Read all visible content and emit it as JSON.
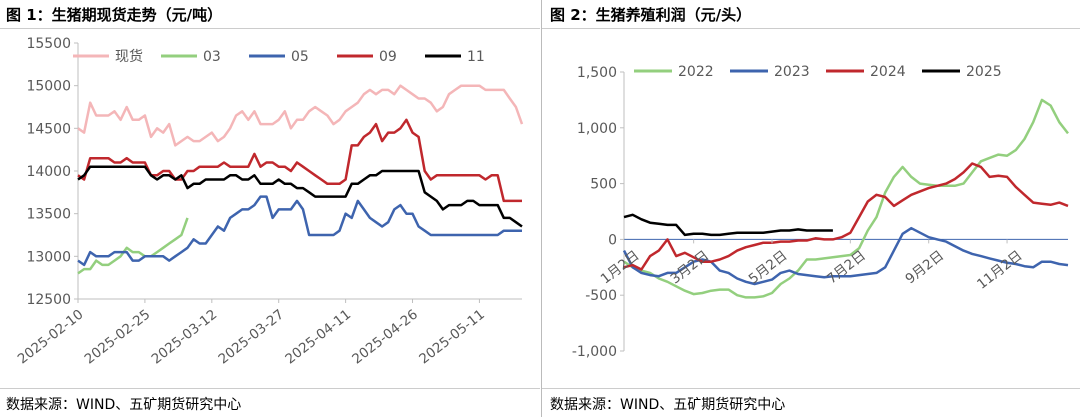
{
  "chart_data": [
    {
      "type": "line",
      "title": "图 1：生猪期现货走势（元/吨）",
      "source": "数据来源：WIND、五矿期货研究中心",
      "ylim": [
        12500,
        15500
      ],
      "yticks": [
        "15500",
        "15000",
        "14500",
        "14000",
        "13500",
        "13000",
        "12500"
      ],
      "ytick_values": [
        15500,
        15000,
        14500,
        14000,
        13500,
        13000,
        12500
      ],
      "xticks": [
        "2025-02-10",
        "2025-02-25",
        "2025-03-12",
        "2025-03-27",
        "2025-04-11",
        "2025-04-26",
        "2025-05-11"
      ],
      "xtick_index": [
        0,
        11,
        22,
        33,
        44,
        55,
        66
      ],
      "n_points": 74,
      "series": [
        {
          "name": "现货",
          "color": "#f4b6b8",
          "start": 0,
          "values": [
            14500,
            14450,
            14800,
            14650,
            14650,
            14650,
            14700,
            14600,
            14750,
            14600,
            14600,
            14650,
            14400,
            14500,
            14450,
            14550,
            14300,
            14350,
            14400,
            14350,
            14350,
            14400,
            14450,
            14350,
            14400,
            14500,
            14650,
            14700,
            14600,
            14700,
            14550,
            14550,
            14550,
            14600,
            14700,
            14500,
            14600,
            14600,
            14700,
            14750,
            14700,
            14650,
            14550,
            14600,
            14700,
            14750,
            14800,
            14900,
            14950,
            14900,
            14950,
            14950,
            14900,
            15000,
            14950,
            14900,
            14850,
            14850,
            14800,
            14700,
            14750,
            14900,
            14950,
            15000,
            15000,
            15000,
            15000,
            14950,
            14950,
            14950,
            14950,
            14850,
            14750,
            14550
          ]
        },
        {
          "name": "03",
          "color": "#93cf7e",
          "start": 0,
          "values": [
            12800,
            12850,
            12850,
            12950,
            12900,
            12900,
            12950,
            13000,
            13100,
            13050,
            13050,
            13000,
            13000,
            13050,
            13100,
            13150,
            13200,
            13250,
            13450
          ]
        },
        {
          "name": "05",
          "color": "#3e64ae",
          "start": 0,
          "values": [
            12950,
            12900,
            13050,
            13000,
            13000,
            13000,
            13050,
            13050,
            13050,
            12950,
            12950,
            13000,
            13000,
            13000,
            13000,
            12950,
            13000,
            13050,
            13100,
            13200,
            13150,
            13150,
            13250,
            13350,
            13300,
            13450,
            13500,
            13550,
            13550,
            13600,
            13700,
            13700,
            13450,
            13550,
            13550,
            13550,
            13650,
            13550,
            13250,
            13250,
            13250,
            13250,
            13250,
            13300,
            13500,
            13450,
            13650,
            13550,
            13450,
            13400,
            13350,
            13400,
            13550,
            13600,
            13500,
            13500,
            13350,
            13300,
            13250,
            13250,
            13250,
            13250,
            13250,
            13250,
            13250,
            13250,
            13250,
            13250,
            13250,
            13250,
            13300,
            13300,
            13300,
            13300
          ]
        },
        {
          "name": "09",
          "color": "#c0282d",
          "start": 0,
          "values": [
            13950,
            13900,
            14150,
            14150,
            14150,
            14150,
            14100,
            14100,
            14150,
            14100,
            14100,
            14100,
            13950,
            13950,
            14000,
            14000,
            13900,
            13900,
            14000,
            14000,
            14050,
            14050,
            14050,
            14050,
            14100,
            14050,
            14050,
            14050,
            14050,
            14200,
            14050,
            14100,
            14100,
            14050,
            14050,
            14000,
            14100,
            14050,
            14000,
            13950,
            13900,
            13850,
            13850,
            13850,
            13900,
            14300,
            14300,
            14400,
            14450,
            14550,
            14350,
            14450,
            14450,
            14500,
            14600,
            14450,
            14400,
            14000,
            13900,
            13950,
            13950,
            13950,
            13950,
            13950,
            13950,
            13950,
            13950,
            13900,
            13950,
            13950,
            13650,
            13650,
            13650,
            13650
          ]
        },
        {
          "name": "11",
          "color": "#000000",
          "start": 0,
          "values": [
            13900,
            13950,
            14050,
            14050,
            14050,
            14050,
            14050,
            14050,
            14050,
            14050,
            14050,
            14050,
            13950,
            13900,
            13950,
            13950,
            13900,
            13950,
            13800,
            13850,
            13850,
            13900,
            13900,
            13900,
            13900,
            13950,
            13950,
            13900,
            13900,
            13950,
            13850,
            13850,
            13850,
            13900,
            13850,
            13850,
            13800,
            13800,
            13750,
            13700,
            13700,
            13700,
            13700,
            13700,
            13700,
            13850,
            13850,
            13900,
            13950,
            13950,
            14000,
            14000,
            14000,
            14000,
            14000,
            14000,
            14000,
            13750,
            13700,
            13650,
            13550,
            13600,
            13600,
            13600,
            13650,
            13650,
            13600,
            13600,
            13600,
            13600,
            13450,
            13450,
            13400,
            13350
          ]
        }
      ]
    },
    {
      "type": "line",
      "title": "图 2：生猪养殖利润（元/头）",
      "source": "数据来源：WIND、五矿期货研究中心",
      "ylim": [
        -1000,
        1500
      ],
      "yticks": [
        "1,500",
        "1,000",
        "500",
        "0",
        "-500",
        "-1,000"
      ],
      "ytick_values": [
        1500,
        1000,
        500,
        0,
        -500,
        -1000
      ],
      "xticks": [
        "1月2日",
        "3月2日",
        "5月2日",
        "7月2日",
        "9月2日",
        "11月2日"
      ],
      "xtick_index": [
        0,
        8,
        17,
        26,
        35,
        44
      ],
      "n_points": 52,
      "series": [
        {
          "name": "2022",
          "color": "#93cf7e",
          "start": 0,
          "values": [
            -200,
            -250,
            -280,
            -300,
            -350,
            -380,
            -420,
            -460,
            -490,
            -480,
            -460,
            -450,
            -450,
            -500,
            -520,
            -520,
            -510,
            -480,
            -400,
            -350,
            -280,
            -180,
            -180,
            -170,
            -160,
            -150,
            -140,
            -80,
            80,
            200,
            420,
            560,
            650,
            560,
            500,
            490,
            480,
            480,
            480,
            500,
            600,
            700,
            730,
            760,
            750,
            800,
            900,
            1050,
            1250,
            1200,
            1050,
            950
          ]
        },
        {
          "name": "2023",
          "color": "#3e64ae",
          "start": 0,
          "values": [
            -100,
            -250,
            -300,
            -320,
            -330,
            -300,
            -300,
            -250,
            -200,
            -180,
            -200,
            -280,
            -300,
            -350,
            -380,
            -400,
            -380,
            -360,
            -300,
            -280,
            -310,
            -320,
            -330,
            -340,
            -330,
            -330,
            -330,
            -320,
            -310,
            -300,
            -250,
            -100,
            50,
            100,
            60,
            20,
            0,
            -20,
            -60,
            -100,
            -130,
            -150,
            -170,
            -190,
            -210,
            -220,
            -240,
            -250,
            -200,
            -200,
            -220,
            -230
          ]
        },
        {
          "name": "2024",
          "color": "#c0282d",
          "start": 0,
          "values": [
            -250,
            -230,
            -270,
            -150,
            -100,
            0,
            -150,
            -120,
            -160,
            -200,
            -200,
            -180,
            -150,
            -100,
            -70,
            -50,
            -30,
            -30,
            -20,
            -20,
            -10,
            -10,
            10,
            0,
            0,
            20,
            60,
            200,
            340,
            400,
            380,
            300,
            350,
            400,
            430,
            460,
            480,
            500,
            540,
            600,
            680,
            650,
            560,
            570,
            560,
            470,
            400,
            330,
            320,
            310,
            330,
            300
          ]
        },
        {
          "name": "2025",
          "color": "#000000",
          "start": 0,
          "values": [
            200,
            220,
            180,
            150,
            140,
            130,
            130,
            40,
            50,
            50,
            40,
            40,
            50,
            60,
            60,
            60,
            60,
            70,
            80,
            80,
            90,
            80,
            80,
            80,
            80
          ]
        }
      ]
    }
  ]
}
